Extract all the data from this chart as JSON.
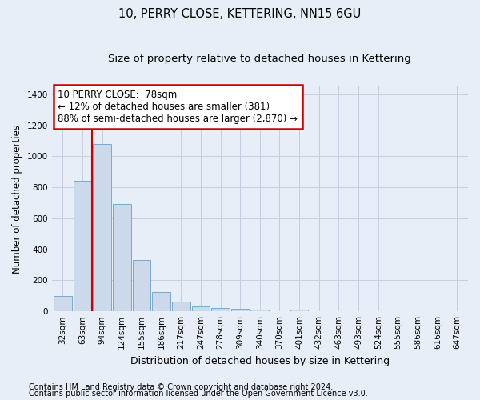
{
  "title": "10, PERRY CLOSE, KETTERING, NN15 6GU",
  "subtitle": "Size of property relative to detached houses in Kettering",
  "xlabel": "Distribution of detached houses by size in Kettering",
  "ylabel": "Number of detached properties",
  "footnote1": "Contains HM Land Registry data © Crown copyright and database right 2024.",
  "footnote2": "Contains public sector information licensed under the Open Government Licence v3.0.",
  "bar_labels": [
    "32sqm",
    "63sqm",
    "94sqm",
    "124sqm",
    "155sqm",
    "186sqm",
    "217sqm",
    "247sqm",
    "278sqm",
    "309sqm",
    "340sqm",
    "370sqm",
    "401sqm",
    "432sqm",
    "463sqm",
    "493sqm",
    "524sqm",
    "555sqm",
    "586sqm",
    "616sqm",
    "647sqm"
  ],
  "bar_values": [
    100,
    840,
    1080,
    690,
    330,
    125,
    62,
    30,
    20,
    15,
    10,
    0,
    10,
    0,
    0,
    0,
    0,
    0,
    0,
    0,
    0
  ],
  "bar_color": "#ccd9ea",
  "bar_edge_color": "#7aa8d0",
  "vline_x": 1.48,
  "vline_color": "#cc0000",
  "annotation_text": "10 PERRY CLOSE:  78sqm\n← 12% of detached houses are smaller (381)\n88% of semi-detached houses are larger (2,870) →",
  "annotation_box_color": "#ffffff",
  "annotation_box_edge_color": "#cc0000",
  "ylim": [
    0,
    1450
  ],
  "yticks": [
    0,
    200,
    400,
    600,
    800,
    1000,
    1200,
    1400
  ],
  "grid_color": "#c5cfe0",
  "background_color": "#e8eef8",
  "title_fontsize": 10.5,
  "subtitle_fontsize": 9.5,
  "ylabel_fontsize": 8.5,
  "xlabel_fontsize": 9,
  "tick_fontsize": 7.5,
  "footnote_fontsize": 7,
  "ann_fontsize": 8.5
}
